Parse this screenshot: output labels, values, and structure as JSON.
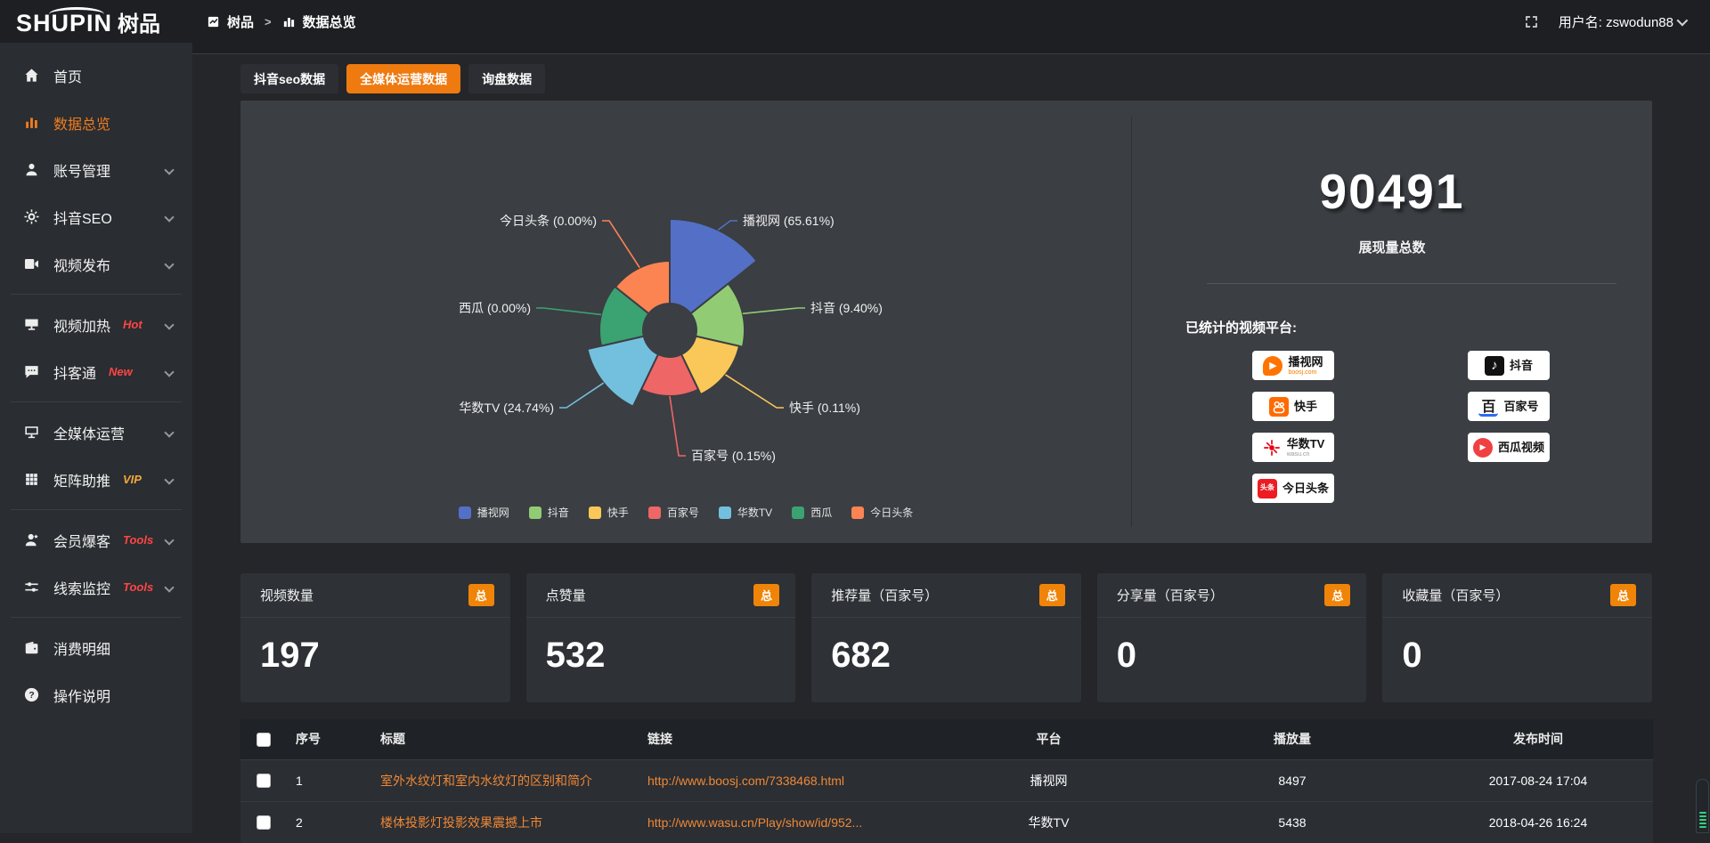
{
  "header": {
    "logo_latin": "SHUPIN",
    "logo_cn": "树品",
    "breadcrumb_root": "树品",
    "breadcrumb_sep": ">",
    "breadcrumb_current": "数据总览",
    "username": "用户名: zswodun88"
  },
  "sidebar": {
    "items": [
      {
        "label": "首页",
        "icon": "home",
        "active": false,
        "chevron": false,
        "badge": null,
        "divider": false
      },
      {
        "label": "数据总览",
        "icon": "bars",
        "active": true,
        "chevron": false,
        "badge": null,
        "divider": false
      },
      {
        "label": "账号管理",
        "icon": "user",
        "active": false,
        "chevron": true,
        "badge": null,
        "divider": false
      },
      {
        "label": "抖音SEO",
        "icon": "gear",
        "active": false,
        "chevron": true,
        "badge": null,
        "divider": false
      },
      {
        "label": "视频发布",
        "icon": "video",
        "active": false,
        "chevron": true,
        "badge": null,
        "divider": true
      },
      {
        "label": "视频加热",
        "icon": "heat",
        "active": false,
        "chevron": true,
        "badge": "Hot",
        "badge_color": "#ff4545",
        "divider": false
      },
      {
        "label": "抖客通",
        "icon": "chat",
        "active": false,
        "chevron": true,
        "badge": "New",
        "badge_color": "#ff4545",
        "divider": true
      },
      {
        "label": "全媒体运营",
        "icon": "monitor",
        "active": false,
        "chevron": true,
        "badge": null,
        "divider": false
      },
      {
        "label": "矩阵助推",
        "icon": "grid",
        "active": false,
        "chevron": true,
        "badge": "VIP",
        "badge_color": "#f2a93b",
        "divider": true
      },
      {
        "label": "会员爆客",
        "icon": "member",
        "active": false,
        "chevron": true,
        "badge": "Tools",
        "badge_color": "#ff4545",
        "divider": false
      },
      {
        "label": "线索监控",
        "icon": "sliders",
        "active": false,
        "chevron": true,
        "badge": "Tools",
        "badge_color": "#ff4545",
        "divider": true
      },
      {
        "label": "消费明细",
        "icon": "wallet",
        "active": false,
        "chevron": false,
        "badge": null,
        "divider": false
      },
      {
        "label": "操作说明",
        "icon": "question",
        "active": false,
        "chevron": false,
        "badge": null,
        "divider": false
      }
    ]
  },
  "tabs": [
    {
      "label": "抖音seo数据",
      "active": false
    },
    {
      "label": "全媒体运营数据",
      "active": true
    },
    {
      "label": "询盘数据",
      "active": false
    }
  ],
  "chart_data": {
    "type": "pie",
    "style": "nightingale-rose",
    "labels": [
      "播视网",
      "抖音",
      "快手",
      "百家号",
      "华数TV",
      "西瓜",
      "今日头条"
    ],
    "values_percent": [
      65.61,
      9.4,
      0.11,
      0.15,
      24.74,
      0.0,
      0.0
    ],
    "colors": [
      "#5470c6",
      "#91cc75",
      "#fac858",
      "#ee6666",
      "#73c0de",
      "#3ba272",
      "#fc8452"
    ],
    "label_format": "{name} ({value}%)",
    "legend": [
      "播视网",
      "抖音",
      "快手",
      "百家号",
      "华数TV",
      "西瓜",
      "今日头条"
    ],
    "legend_position": "bottom",
    "slice_radii": [
      125,
      84,
      80,
      74,
      95,
      79,
      78
    ],
    "inner_radius": 30
  },
  "summary": {
    "total_value": "90491",
    "total_label": "展现量总数",
    "platforms_label": "已统计的视频平台:",
    "platform_columns": [
      [
        {
          "name": "播视网",
          "sub": "boosj.com",
          "sub_color": "#f57a00",
          "icon": "boosj"
        },
        {
          "name": "快手",
          "sub": "",
          "icon": "kuaishou"
        },
        {
          "name": "华数TV",
          "sub": "wasu.cn",
          "sub_color": "#999999",
          "icon": "wasu"
        },
        {
          "name": "今日头条",
          "sub": "",
          "icon": "toutiao"
        }
      ],
      [
        {
          "name": "抖音",
          "sub": "",
          "icon": "douyin"
        },
        {
          "name": "百家号",
          "sub": "",
          "icon": "baijiahao"
        },
        {
          "name": "西瓜视频",
          "sub": "",
          "icon": "xigua"
        }
      ]
    ]
  },
  "stat_cards": [
    {
      "title": "视频数量",
      "badge": "总",
      "value": "197"
    },
    {
      "title": "点赞量",
      "badge": "总",
      "value": "532"
    },
    {
      "title": "推荐量（百家号）",
      "badge": "总",
      "value": "682"
    },
    {
      "title": "分享量（百家号）",
      "badge": "总",
      "value": "0"
    },
    {
      "title": "收藏量（百家号）",
      "badge": "总",
      "value": "0"
    }
  ],
  "table": {
    "headers": [
      "序号",
      "标题",
      "链接",
      "平台",
      "播放量",
      "发布时间"
    ],
    "rows": [
      {
        "index": "1",
        "title": "室外水纹灯和室内水纹灯的区别和简介",
        "link": "http://www.boosj.com/7338468.html",
        "platform": "播视网",
        "plays": "8497",
        "published": "2017-08-24 17:04"
      },
      {
        "index": "2",
        "title": "楼体投影灯投影效果震撼上市",
        "link": "http://www.wasu.cn/Play/show/id/952...",
        "platform": "华数TV",
        "plays": "5438",
        "published": "2018-04-26 16:24"
      }
    ]
  },
  "colors": {
    "accent_orange": "#ee7a10",
    "link_orange": "#ef8836",
    "badge_orange": "#ef8408",
    "panel_bg": "#3b3e43"
  }
}
